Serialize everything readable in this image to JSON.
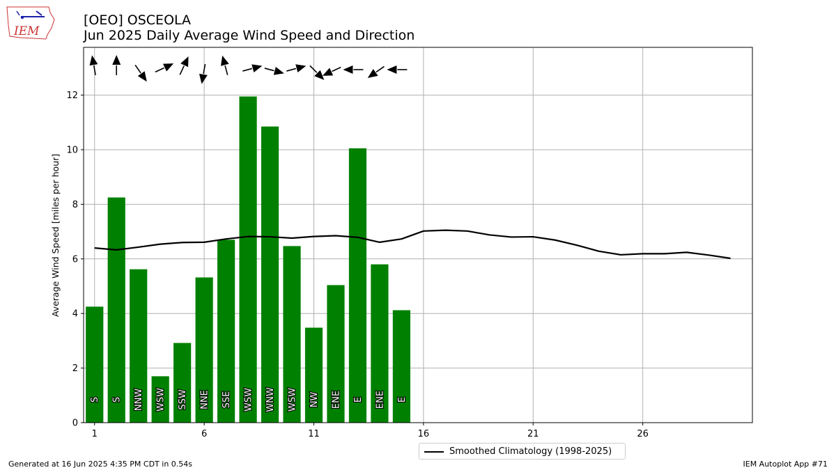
{
  "header": {
    "station": "[OEO] OSCEOLA",
    "subtitle": "Jun 2025 Daily Average Wind Speed and Direction"
  },
  "logo": {
    "text": "IEM"
  },
  "footer": {
    "generated": "Generated at 16 Jun 2025 4:35 PM CDT in 0.54s",
    "app": "IEM Autoplot App #71"
  },
  "colors": {
    "bar": "#008000",
    "climatology": "#000000",
    "grid": "#b0b0b0"
  },
  "chart_data": {
    "type": "bar",
    "ylabel": "Average Wind Speed [miles per hour]",
    "xlim": [
      0.5,
      31
    ],
    "ylim": [
      0,
      13.75
    ],
    "xticks": [
      1,
      6,
      11,
      16,
      21,
      26
    ],
    "yticks": [
      0,
      2,
      4,
      6,
      8,
      10,
      12
    ],
    "grid": true,
    "legend_position": "bottom-center",
    "series": [
      {
        "type": "bar",
        "days": [
          1,
          2,
          3,
          4,
          5,
          6,
          7,
          8,
          9,
          10,
          11,
          12,
          13,
          14,
          15
        ],
        "values": [
          4.25,
          8.25,
          5.62,
          1.7,
          2.92,
          5.32,
          6.7,
          11.95,
          10.85,
          6.47,
          3.48,
          5.04,
          10.05,
          5.8,
          4.12
        ],
        "directions": [
          "S",
          "S",
          "NNW",
          "WSW",
          "SSW",
          "NNE",
          "SSE",
          "WSW",
          "WNW",
          "WSW",
          "NW",
          "ENE",
          "E",
          "ENE",
          "E"
        ],
        "arrow_bearing_deg": [
          350,
          0,
          145,
          65,
          25,
          190,
          345,
          75,
          105,
          75,
          135,
          245,
          270,
          235,
          270
        ]
      },
      {
        "type": "line",
        "name": "Smoothed Climatology (1998-2025)",
        "x": [
          1,
          2,
          3,
          4,
          5,
          6,
          7,
          8,
          9,
          10,
          11,
          12,
          13,
          14,
          15,
          16,
          17,
          18,
          19,
          20,
          21,
          22,
          23,
          24,
          25,
          26,
          27,
          28,
          29,
          30
        ],
        "values": [
          6.4,
          6.33,
          6.43,
          6.54,
          6.6,
          6.61,
          6.73,
          6.82,
          6.81,
          6.76,
          6.82,
          6.85,
          6.79,
          6.61,
          6.73,
          7.02,
          7.05,
          7.02,
          6.88,
          6.8,
          6.81,
          6.69,
          6.5,
          6.28,
          6.15,
          6.19,
          6.19,
          6.24,
          6.14,
          6.02
        ]
      }
    ]
  }
}
